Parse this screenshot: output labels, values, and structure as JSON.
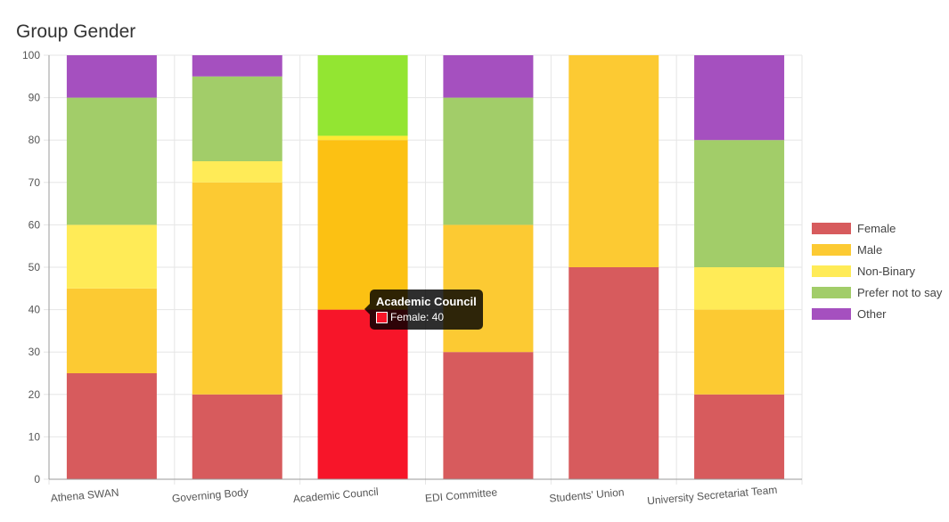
{
  "chart_data": {
    "type": "bar",
    "stacked": true,
    "title": "Group Gender",
    "categories": [
      "Athena SWAN",
      "Governing Body",
      "Academic Council",
      "EDI Committee",
      "Students' Union",
      "University Secretariat Team"
    ],
    "ylim": [
      0,
      100
    ],
    "yticks": [
      0,
      10,
      20,
      30,
      40,
      50,
      60,
      70,
      80,
      90,
      100
    ],
    "grid": true,
    "legend_position": "right",
    "series": [
      {
        "name": "Female",
        "color": "#d75b5d",
        "values": [
          25,
          20,
          40,
          30,
          50,
          20
        ]
      },
      {
        "name": "Male",
        "color": "#fcca33",
        "values": [
          20,
          50,
          40,
          30,
          50,
          20
        ]
      },
      {
        "name": "Non-Binary",
        "color": "#ffeb57",
        "values": [
          15,
          5,
          1,
          0,
          0,
          10
        ]
      },
      {
        "name": "Prefer not to say",
        "color": "#a2cd69",
        "values": [
          30,
          20,
          19,
          30,
          0,
          30
        ]
      },
      {
        "name": "Other",
        "color": "#a550bf",
        "values": [
          10,
          5,
          0,
          10,
          0,
          20
        ]
      }
    ],
    "highlighted_column": 2,
    "highlighted_colors": [
      "#f71529",
      "#fcc113",
      "#ffe933",
      "#93e532",
      "#a550bf"
    ]
  },
  "tooltip": {
    "title": "Academic Council",
    "label": "Female: 40",
    "swatch_color": "#f71529"
  }
}
